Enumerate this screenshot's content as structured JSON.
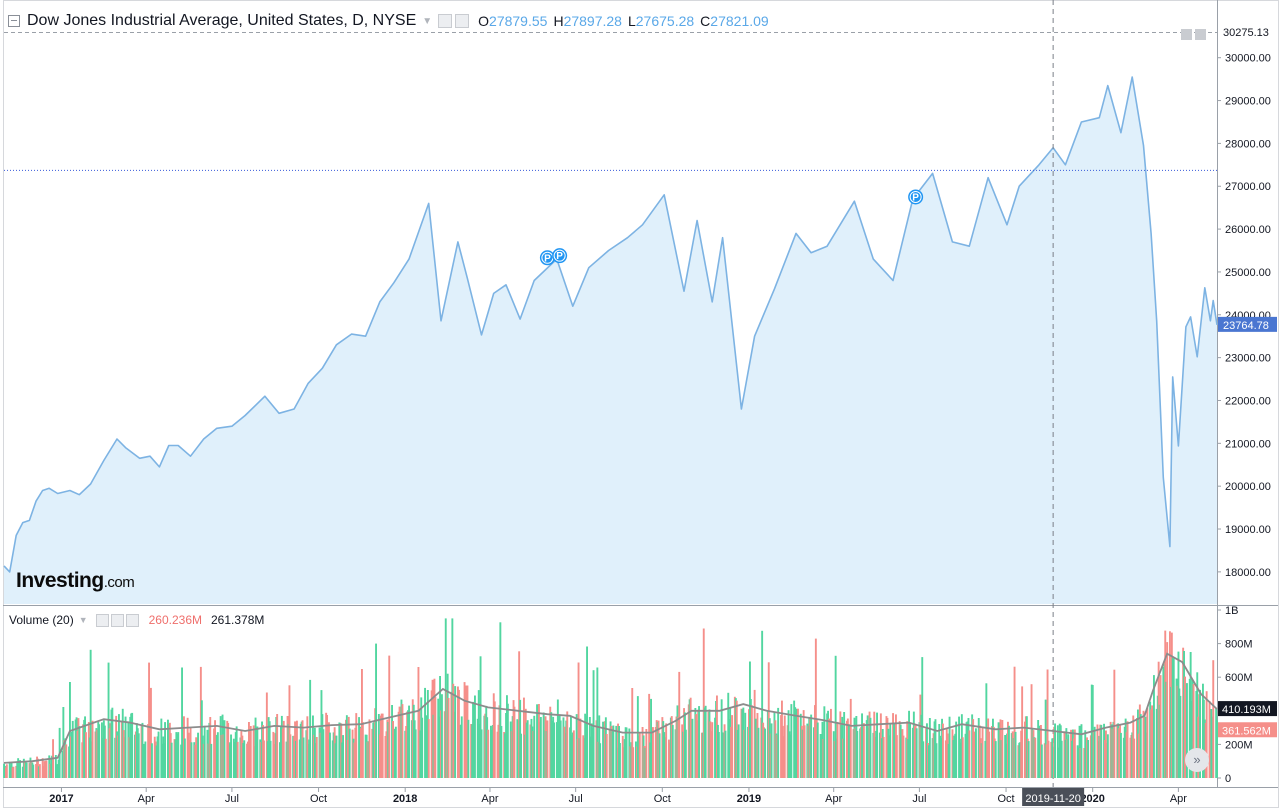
{
  "legend": {
    "title": "Dow Jones Industrial Average, United States, D, NYSE",
    "o_label": "O",
    "o_value": "27879.55",
    "h_label": "H",
    "h_value": "27897.28",
    "l_label": "L",
    "l_value": "27675.28",
    "c_label": "C",
    "c_value": "27821.09"
  },
  "volume_legend": {
    "title": "Volume (20)",
    "value_red": "260.236M",
    "value_black": "261.378M"
  },
  "logo": {
    "main": "Investing",
    "suffix": ".com"
  },
  "colors": {
    "line": "#7db3e3",
    "area": "#e0f0fb",
    "up": "#52d6a0",
    "down": "#f58f8a",
    "ma": "#8c8c8c"
  },
  "chart_data": {
    "type": "area",
    "x_tick_labels": [
      "2017",
      "Apr",
      "Jul",
      "Oct",
      "2018",
      "Apr",
      "Jul",
      "Oct",
      "2019",
      "Apr",
      "Jul",
      "Oct",
      "2020",
      "Apr"
    ],
    "price": {
      "y_ticks": [
        "30000.00",
        "29000.00",
        "28000.00",
        "27000.00",
        "26000.00",
        "25000.00",
        "24000.00",
        "23000.00",
        "22000.00",
        "21000.00",
        "20000.00",
        "19000.00",
        "18000.00"
      ],
      "ylim": [
        17250,
        30600
      ],
      "max_marker": "30275.13",
      "last_marker": "23764.78",
      "hline_level": 27370,
      "crosshair_date": "2019-11-20",
      "points": [
        [
          "2016-11-01",
          18140
        ],
        [
          "2016-11-07",
          18000
        ],
        [
          "2016-11-14",
          18850
        ],
        [
          "2016-11-21",
          19150
        ],
        [
          "2016-11-28",
          19200
        ],
        [
          "2016-12-05",
          19650
        ],
        [
          "2016-12-12",
          19900
        ],
        [
          "2016-12-19",
          19950
        ],
        [
          "2016-12-28",
          19830
        ],
        [
          "2017-01-10",
          19900
        ],
        [
          "2017-01-20",
          19800
        ],
        [
          "2017-02-01",
          20050
        ],
        [
          "2017-02-15",
          20600
        ],
        [
          "2017-03-01",
          21100
        ],
        [
          "2017-03-10",
          20900
        ],
        [
          "2017-03-25",
          20650
        ],
        [
          "2017-04-05",
          20700
        ],
        [
          "2017-04-15",
          20450
        ],
        [
          "2017-04-25",
          20950
        ],
        [
          "2017-05-05",
          20950
        ],
        [
          "2017-05-18",
          20700
        ],
        [
          "2017-06-01",
          21100
        ],
        [
          "2017-06-15",
          21350
        ],
        [
          "2017-07-01",
          21400
        ],
        [
          "2017-07-15",
          21650
        ],
        [
          "2017-08-05",
          22100
        ],
        [
          "2017-08-20",
          21700
        ],
        [
          "2017-09-05",
          21800
        ],
        [
          "2017-09-20",
          22400
        ],
        [
          "2017-10-05",
          22750
        ],
        [
          "2017-10-20",
          23300
        ],
        [
          "2017-11-05",
          23550
        ],
        [
          "2017-11-20",
          23500
        ],
        [
          "2017-12-05",
          24300
        ],
        [
          "2017-12-20",
          24750
        ],
        [
          "2018-01-05",
          25300
        ],
        [
          "2018-01-26",
          26600
        ],
        [
          "2018-02-08",
          23860
        ],
        [
          "2018-02-26",
          25700
        ],
        [
          "2018-03-08",
          24850
        ],
        [
          "2018-03-23",
          23530
        ],
        [
          "2018-04-05",
          24500
        ],
        [
          "2018-04-18",
          24700
        ],
        [
          "2018-05-03",
          23900
        ],
        [
          "2018-05-18",
          24800
        ],
        [
          "2018-06-11",
          25300
        ],
        [
          "2018-06-28",
          24200
        ],
        [
          "2018-07-15",
          25100
        ],
        [
          "2018-08-05",
          25500
        ],
        [
          "2018-08-25",
          25800
        ],
        [
          "2018-09-10",
          26100
        ],
        [
          "2018-10-03",
          26800
        ],
        [
          "2018-10-24",
          24550
        ],
        [
          "2018-11-07",
          26200
        ],
        [
          "2018-11-23",
          24300
        ],
        [
          "2018-12-04",
          25800
        ],
        [
          "2018-12-24",
          21800
        ],
        [
          "2019-01-07",
          23500
        ],
        [
          "2019-01-28",
          24600
        ],
        [
          "2019-02-20",
          25900
        ],
        [
          "2019-03-08",
          25450
        ],
        [
          "2019-03-25",
          25600
        ],
        [
          "2019-04-23",
          26650
        ],
        [
          "2019-05-13",
          25300
        ],
        [
          "2019-06-03",
          24800
        ],
        [
          "2019-06-24",
          26700
        ],
        [
          "2019-07-15",
          27300
        ],
        [
          "2019-08-05",
          25700
        ],
        [
          "2019-08-23",
          25600
        ],
        [
          "2019-09-12",
          27200
        ],
        [
          "2019-10-02",
          26100
        ],
        [
          "2019-10-15",
          27000
        ],
        [
          "2019-11-05",
          27500
        ],
        [
          "2019-11-20",
          27900
        ],
        [
          "2019-12-03",
          27500
        ],
        [
          "2019-12-20",
          28500
        ],
        [
          "2020-01-08",
          28600
        ],
        [
          "2020-01-17",
          29350
        ],
        [
          "2020-01-31",
          28250
        ],
        [
          "2020-02-12",
          29550
        ],
        [
          "2020-02-24",
          27950
        ],
        [
          "2020-03-03",
          25900
        ],
        [
          "2020-03-09",
          23850
        ],
        [
          "2020-03-16",
          20200
        ],
        [
          "2020-03-23",
          18590
        ],
        [
          "2020-03-26",
          22550
        ],
        [
          "2020-04-01",
          20940
        ],
        [
          "2020-04-09",
          23720
        ],
        [
          "2020-04-14",
          23950
        ],
        [
          "2020-04-21",
          23020
        ],
        [
          "2020-04-29",
          24630
        ],
        [
          "2020-05-05",
          23860
        ],
        [
          "2020-05-08",
          24330
        ],
        [
          "2020-05-12",
          23764
        ]
      ]
    },
    "volume": {
      "y_ticks": [
        "1B",
        "800M",
        "600M",
        "400M",
        "200M",
        "0"
      ],
      "ylim": [
        0,
        1000
      ],
      "unit": "M",
      "ma_last_marker": "410.193M",
      "vol_last_marker": "361.562M",
      "ma_points": [
        [
          "2016-11-01",
          90
        ],
        [
          "2016-12-01",
          100
        ],
        [
          "2016-12-28",
          120
        ],
        [
          "2017-01-10",
          280
        ],
        [
          "2017-02-15",
          350
        ],
        [
          "2017-03-15",
          330
        ],
        [
          "2017-04-15",
          290
        ],
        [
          "2017-05-15",
          300
        ],
        [
          "2017-06-15",
          310
        ],
        [
          "2017-07-15",
          280
        ],
        [
          "2017-08-15",
          310
        ],
        [
          "2017-09-15",
          300
        ],
        [
          "2017-10-15",
          315
        ],
        [
          "2017-11-15",
          320
        ],
        [
          "2017-12-15",
          360
        ],
        [
          "2018-01-15",
          400
        ],
        [
          "2018-02-10",
          530
        ],
        [
          "2018-03-05",
          460
        ],
        [
          "2018-03-30",
          420
        ],
        [
          "2018-05-01",
          400
        ],
        [
          "2018-06-01",
          380
        ],
        [
          "2018-06-25",
          370
        ],
        [
          "2018-07-20",
          310
        ],
        [
          "2018-08-20",
          270
        ],
        [
          "2018-09-20",
          270
        ],
        [
          "2018-10-15",
          340
        ],
        [
          "2018-11-01",
          400
        ],
        [
          "2018-12-01",
          400
        ],
        [
          "2018-12-26",
          440
        ],
        [
          "2019-01-20",
          400
        ],
        [
          "2019-02-20",
          370
        ],
        [
          "2019-03-20",
          345
        ],
        [
          "2019-04-20",
          310
        ],
        [
          "2019-05-20",
          320
        ],
        [
          "2019-06-20",
          330
        ],
        [
          "2019-07-20",
          280
        ],
        [
          "2019-08-15",
          320
        ],
        [
          "2019-09-20",
          290
        ],
        [
          "2019-10-20",
          300
        ],
        [
          "2019-11-20",
          280
        ],
        [
          "2019-12-20",
          260
        ],
        [
          "2020-01-15",
          300
        ],
        [
          "2020-02-10",
          330
        ],
        [
          "2020-02-25",
          370
        ],
        [
          "2020-03-05",
          520
        ],
        [
          "2020-03-20",
          740
        ],
        [
          "2020-04-05",
          690
        ],
        [
          "2020-04-25",
          500
        ],
        [
          "2020-05-12",
          410
        ]
      ]
    }
  }
}
